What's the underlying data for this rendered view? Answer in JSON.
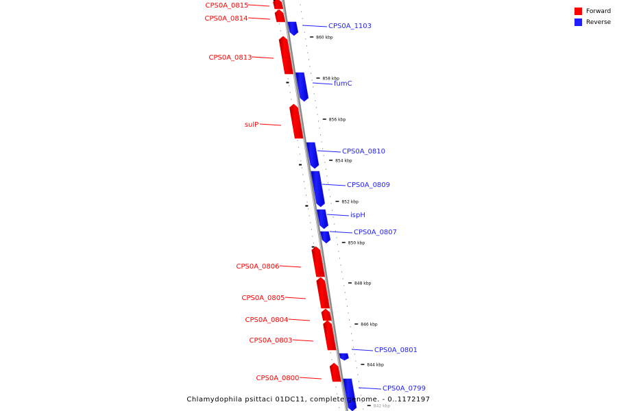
{
  "caption": "Chlamydophila psittaci 01DC11, complete genome. - 0..1172197",
  "colors": {
    "forward": "#ff0000",
    "reverse": "#1f1fff",
    "backbone": "#999999"
  },
  "legend": [
    {
      "label": "Forward",
      "color": "#ff0000"
    },
    {
      "label": "Reverse",
      "color": "#1f1fff"
    }
  ],
  "genes": [
    {
      "name": "CPS0A_0815",
      "strand": "forward"
    },
    {
      "name": "CPS0A_0814",
      "strand": "forward"
    },
    {
      "name": "CPS0A_1103",
      "strand": "reverse"
    },
    {
      "name": "CPS0A_0813",
      "strand": "forward"
    },
    {
      "name": "fumC",
      "strand": "reverse"
    },
    {
      "name": "sulP",
      "strand": "forward"
    },
    {
      "name": "CPS0A_0810",
      "strand": "reverse"
    },
    {
      "name": "CPS0A_0809",
      "strand": "reverse"
    },
    {
      "name": "ispH",
      "strand": "reverse"
    },
    {
      "name": "CPS0A_0807",
      "strand": "reverse"
    },
    {
      "name": "CPS0A_0806",
      "strand": "forward"
    },
    {
      "name": "CPS0A_0805",
      "strand": "forward"
    },
    {
      "name": "CPS0A_0804",
      "strand": "forward"
    },
    {
      "name": "CPS0A_0803",
      "strand": "forward"
    },
    {
      "name": "CPS0A_0801",
      "strand": "reverse"
    },
    {
      "name": "CPS0A_0800",
      "strand": "forward"
    },
    {
      "name": "CPS0A_0799",
      "strand": "reverse"
    }
  ],
  "scale_labels": [
    "860 kbp",
    "858 kbp",
    "856 kbp",
    "854 kbp",
    "852 kbp",
    "850 kbp",
    "848 kbp",
    "846 kbp",
    "844 kbp",
    "842 kbp"
  ]
}
